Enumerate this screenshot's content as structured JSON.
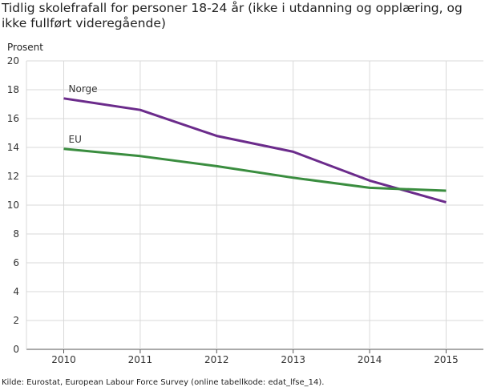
{
  "chart_data": {
    "type": "line",
    "title": "Tidlig skolefrafall for personer 18-24 år (ikke i utdanning og opplæring, og ikke fullført videregående)",
    "ylabel": "Prosent",
    "xlabel": "",
    "x": [
      "2010",
      "2011",
      "2012",
      "2013",
      "2014",
      "2015"
    ],
    "ylim": [
      0,
      20
    ],
    "yticks": [
      "0",
      "2",
      "4",
      "6",
      "8",
      "10",
      "12",
      "14",
      "16",
      "18",
      "20"
    ],
    "grid": true,
    "series": [
      {
        "name": "Norge",
        "color": "#6b2b8b",
        "values": [
          17.4,
          16.6,
          14.8,
          13.7,
          11.7,
          10.2
        ]
      },
      {
        "name": "EU",
        "color": "#3a8d3f",
        "values": [
          13.9,
          13.4,
          12.7,
          11.9,
          11.2,
          11.0
        ]
      }
    ],
    "source": "Kilde: Eurostat, European Labour Force Survey (online tabellkode: edat_lfse_14)."
  }
}
